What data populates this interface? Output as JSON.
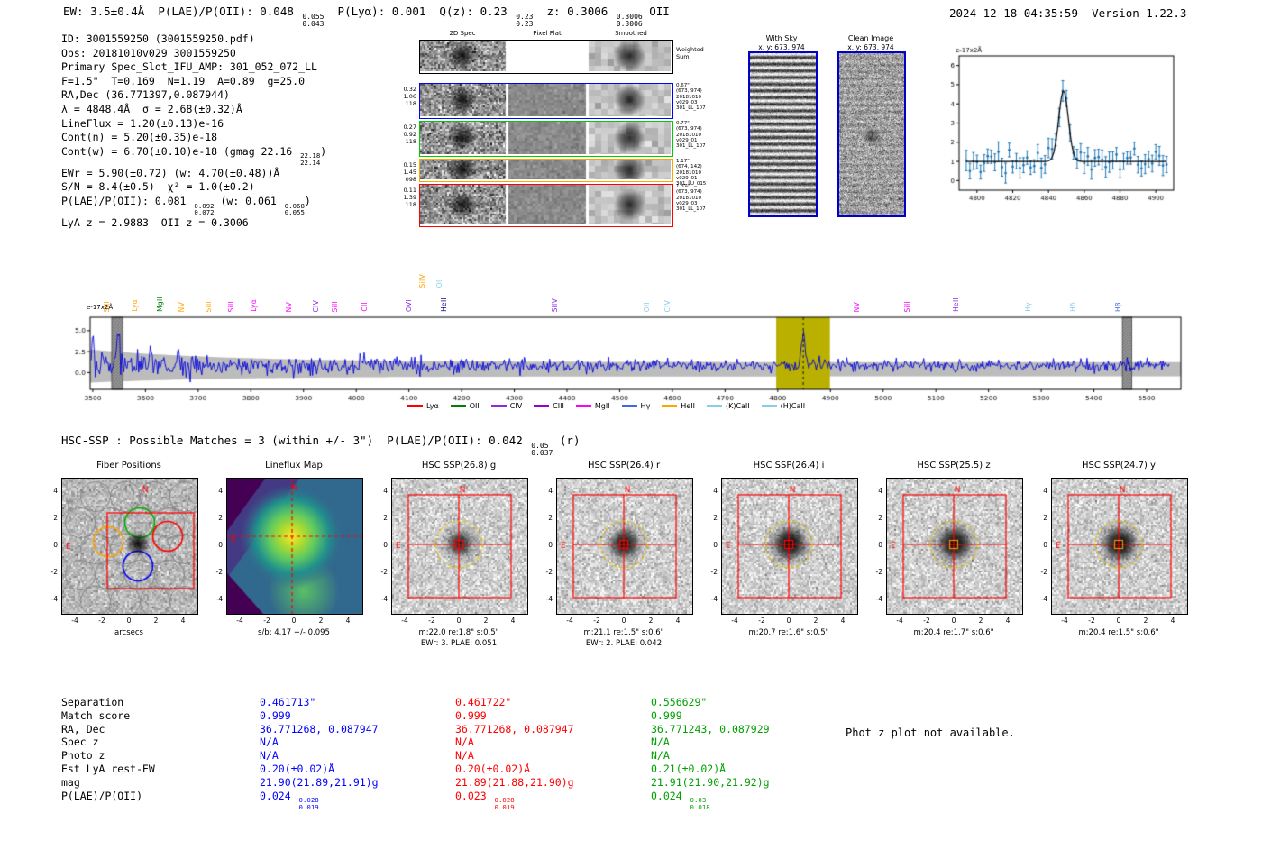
{
  "header": {
    "summary_segments": [
      {
        "t": "EW: 3.5±0.4Å  P(LAE)/P(OII): 0.048 "
      },
      {
        "frac": [
          "0.055",
          "0.043"
        ]
      },
      {
        "t": "  P(Lyα): 0.001  Q(z): 0.23 "
      },
      {
        "frac": [
          "0.23",
          "0.23"
        ]
      },
      {
        "t": "  z: 0.3006 "
      },
      {
        "frac": [
          "0.3006",
          "0.3006"
        ]
      },
      {
        "t": " OII"
      }
    ],
    "timestamp": "2024-12-18 04:35:59",
    "version": "Version 1.22.3"
  },
  "info": {
    "lines": [
      [
        {
          "t": "ID: 3001559250 (3001559250.pdf)"
        }
      ],
      [
        {
          "t": "Obs: 20181010v029_3001559250"
        }
      ],
      [
        {
          "t": "Primary Spec_Slot_IFU_AMP: 301_052_072_LL"
        }
      ],
      [
        {
          "t": "F=1.5\"  T=0.169  N=1.19  A=0.89  g=25.0"
        }
      ],
      [
        {
          "t": "RA,Dec (36.771397,0.087944)"
        }
      ],
      [
        {
          "t": "λ = 4848.4Å  σ = 2.68(±0.32)Å"
        }
      ],
      [
        {
          "t": "LineFlux = 1.20(±0.13)e-16"
        }
      ],
      [
        {
          "t": "Cont(n) = 5.20(±0.35)e-18"
        }
      ],
      [
        {
          "t": "Cont(w) = 6.70(±0.10)e-18 (gmag 22.16 "
        },
        {
          "frac": [
            "22.18",
            "22.14"
          ]
        },
        {
          "t": ")"
        }
      ],
      [
        {
          "t": "EWr = 5.90(±0.72) (w: 4.70(±0.48))Å"
        }
      ],
      [
        {
          "t": "S/N = 8.4(±0.5)  χ² = 1.0(±0.2)"
        }
      ],
      [
        {
          "t": "P(LAE)/P(OII): 0.081 "
        },
        {
          "frac": [
            "0.092",
            "0.072"
          ]
        },
        {
          "t": " (w: 0.061 "
        },
        {
          "frac": [
            "0.068",
            "0.055"
          ]
        },
        {
          "t": ")"
        }
      ],
      [
        {
          "t": "LyA z = 2.9883  OII z = 0.3006"
        }
      ]
    ]
  },
  "spec2d": {
    "col_headers": [
      "2D Spec",
      "Pixel Flat",
      "Smoothed"
    ],
    "weighted_label": [
      "Weighted",
      "Sum"
    ],
    "rows": [
      {
        "color": "#000000",
        "left": [],
        "right": []
      },
      {
        "color": "#0000ff",
        "left": [
          "0.32",
          "1.06",
          "118"
        ],
        "right": [
          "0.67\"",
          "(673, 974)",
          "20181010",
          "v029_03",
          "301_LL_107"
        ]
      },
      {
        "color": "#00cc00",
        "left": [
          "0.27",
          "0.92",
          "118"
        ],
        "right": [
          "0.77\"",
          "(673, 974)",
          "20181010",
          "v029_01",
          "301_LL_107"
        ]
      },
      {
        "color": "#ffa500",
        "left": [
          "0.15",
          "1.45",
          "098"
        ],
        "right": [
          "1.17\"",
          "(674, 142)",
          "20181010",
          "v029_01",
          "301_LU_015"
        ]
      },
      {
        "color": "#ff0000",
        "left": [
          "0.11",
          "1.39",
          "118"
        ],
        "right": [
          "1.37\"",
          "(673, 974)",
          "20181010",
          "v029_03",
          "301_LL_107"
        ]
      }
    ]
  },
  "sky_panels": {
    "with_sky": {
      "title": "With Sky",
      "coords": "x, y: 673, 974"
    },
    "clean": {
      "title": "Clean Image",
      "coords": "x, y: 673, 974"
    }
  },
  "chart_data": [
    {
      "id": "emission_line_fit",
      "type": "scatter",
      "title": "",
      "xlabel": "",
      "ylabel": "e-17x2Å",
      "xlim": [
        4790,
        4910
      ],
      "ylim": [
        -0.5,
        6.5
      ],
      "xticks": [
        4800,
        4820,
        4840,
        4860,
        4880,
        4900
      ],
      "yticks": [
        0,
        1,
        2,
        3,
        4,
        5,
        6
      ],
      "fit": {
        "center": 4848.4,
        "sigma": 2.68,
        "amplitude": 3.7,
        "continuum": 1.0
      },
      "noise_sigma": 0.33,
      "point_step": 2,
      "colors": {
        "points": "#1f77b4",
        "fit": "#000000"
      },
      "grid": false
    },
    {
      "id": "full_spectrum",
      "type": "line",
      "title": "",
      "xlabel": "",
      "ylabel": "e-17x2Å",
      "xlim": [
        3495,
        5565
      ],
      "ylim": [
        -2.0,
        6.6
      ],
      "xticks": [
        3500,
        3600,
        3700,
        3800,
        3900,
        4000,
        4100,
        4200,
        4300,
        4400,
        4500,
        4600,
        4700,
        4800,
        4900,
        5000,
        5100,
        5200,
        5300,
        5400,
        5500
      ],
      "yticks": [
        0,
        2.5,
        5
      ],
      "continuum": 0.85,
      "noise": {
        "base": 0.34,
        "blue_extra": 0.55,
        "decay": 420
      },
      "peaks": [
        {
          "x": 3500,
          "a": 4.5,
          "s": 2.2
        },
        {
          "x": 3548,
          "a": 4.3,
          "s": 2.6
        },
        {
          "x": 3610,
          "a": 1.7,
          "s": 2.2
        },
        {
          "x": 3662,
          "a": 1.5,
          "s": 2.0
        },
        {
          "x": 4848.4,
          "a": 4.15,
          "s": 3.2
        }
      ],
      "highlight_band": {
        "range": [
          4797,
          4899
        ],
        "color": "#b9b000"
      },
      "sky_bands": [
        [
          3536,
          3557
        ],
        [
          5454,
          5472
        ]
      ],
      "noise_band": {
        "color": "#bcbcbc"
      },
      "line_color": "#0000dd",
      "marker_line": {
        "x": 4848.4,
        "style": "dashed",
        "color": "#000000"
      },
      "legend_position": "bottom center",
      "grid": false
    }
  ],
  "spectrum_annotations": {
    "line_labels": [
      {
        "label": "SiII",
        "wave": 3528,
        "color": "#ffa500",
        "raise": false
      },
      {
        "label": "Lyα",
        "wave": 3581,
        "color": "#ffa500",
        "raise": false
      },
      {
        "label": "MgII",
        "wave": 3628,
        "color": "#008000",
        "raise": false
      },
      {
        "label": "NV",
        "wave": 3669,
        "color": "#ffa500",
        "raise": false
      },
      {
        "label": "SiII",
        "wave": 3721,
        "color": "#ffa500",
        "raise": false
      },
      {
        "label": "SiII",
        "wave": 3764,
        "color": "#ff00ff",
        "raise": false
      },
      {
        "label": "Lyα",
        "wave": 3807,
        "color": "#ff00ff",
        "raise": false
      },
      {
        "label": "NV",
        "wave": 3873,
        "color": "#ff00ff",
        "raise": false
      },
      {
        "label": "CIV",
        "wave": 3925,
        "color": "#8a2be2",
        "raise": false
      },
      {
        "label": "SiII",
        "wave": 3960,
        "color": "#ff00ff",
        "raise": false
      },
      {
        "label": "CII",
        "wave": 4017,
        "color": "#ff00ff",
        "raise": false
      },
      {
        "label": "OVI",
        "wave": 4100,
        "color": "#8a2be2",
        "raise": false
      },
      {
        "label": "SiIV",
        "wave": 4126,
        "color": "#ffa500",
        "raise": true
      },
      {
        "label": "OII",
        "wave": 4158,
        "color": "#87ceeb",
        "raise": true
      },
      {
        "label": "HeII",
        "wave": 4168,
        "color": "#00008b",
        "raise": false
      },
      {
        "label": "SiIV",
        "wave": 4378,
        "color": "#8a2be2",
        "raise": false
      },
      {
        "label": "OII",
        "wave": 4553,
        "color": "#87ceeb",
        "raise": false
      },
      {
        "label": "CIV",
        "wave": 4591,
        "color": "#87ceeb",
        "raise": false
      },
      {
        "label": "NV",
        "wave": 4951,
        "color": "#ff00ff",
        "raise": false
      },
      {
        "label": "SiII",
        "wave": 5046,
        "color": "#ff00ff",
        "raise": false
      },
      {
        "label": "HeII",
        "wave": 5139,
        "color": "#8a2be2",
        "raise": false
      },
      {
        "label": "Hγ",
        "wave": 5276,
        "color": "#87ceeb",
        "raise": false
      },
      {
        "label": "Hδ",
        "wave": 5362,
        "color": "#87ceeb",
        "raise": false
      },
      {
        "label": "Hβ",
        "wave": 5447,
        "color": "#4169e1",
        "raise": false
      }
    ],
    "legend": [
      {
        "label": "Lyα",
        "color": "#ff0000"
      },
      {
        "label": "OII",
        "color": "#008000"
      },
      {
        "label": "CIV",
        "color": "#8a2be2"
      },
      {
        "label": "CIII",
        "color": "#9400d3"
      },
      {
        "label": "MgII",
        "color": "#ff00ff"
      },
      {
        "label": "Hγ",
        "color": "#4169e1"
      },
      {
        "label": "HeII",
        "color": "#ffa500"
      },
      {
        "label": "(K)CaII",
        "color": "#87ceeb"
      },
      {
        "label": "(H)CaII",
        "color": "#87ceeb"
      }
    ]
  },
  "matches": {
    "heading_segments": [
      {
        "t": "HSC-SSP : Possible Matches = 3 (within +/- 3\")  P(LAE)/P(OII): 0.042 "
      },
      {
        "frac": [
          "0.05",
          "0.037"
        ]
      },
      {
        "t": " (r)"
      }
    ],
    "row_labels": [
      "Separation",
      "Match score",
      "RA, Dec",
      "Spec z",
      "Photo z",
      "Est LyA rest-EW",
      "mag",
      "P(LAE)/P(OII)"
    ],
    "columns": [
      {
        "color": "#0000ff",
        "values": [
          "0.461713\"",
          "0.999",
          "36.771268, 0.087947",
          "N/A",
          "N/A",
          "0.20(±0.02)Å",
          "21.90(21.89,21.91)g"
        ],
        "plae_segments": [
          {
            "t": "0.024 "
          },
          {
            "frac": [
              "0.028",
              "0.019"
            ]
          }
        ]
      },
      {
        "color": "#ff0000",
        "values": [
          "0.461722\"",
          "0.999",
          "36.771268, 0.087947",
          "N/A",
          "N/A",
          "0.20(±0.02)Å",
          "21.89(21.88,21.90)g"
        ],
        "plae_segments": [
          {
            "t": "0.023 "
          },
          {
            "frac": [
              "0.028",
              "0.019"
            ]
          }
        ]
      },
      {
        "color": "#00a000",
        "values": [
          "0.556629\"",
          "0.999",
          "36.771243, 0.087929",
          "N/A",
          "N/A",
          "0.21(±0.02)Å",
          "21.91(21.90,21.92)g"
        ],
        "plae_segments": [
          {
            "t": "0.024 "
          },
          {
            "frac": [
              "0.03",
              "0.018"
            ]
          }
        ]
      }
    ],
    "note": "Phot z plot not available."
  },
  "cutouts": {
    "ticks": [
      "-4",
      "-2",
      "0",
      "2",
      "4"
    ],
    "panels": [
      {
        "name": "fiber-positions",
        "title": "Fiber Positions",
        "xlabel": "arcsecs",
        "caption": ""
      },
      {
        "name": "lineflux-map",
        "title": "Lineflux Map",
        "xlabel": "s/b: 4.17 +/- 0.095",
        "caption": ""
      },
      {
        "name": "hsc-g",
        "title": "HSC SSP(26.8) g",
        "xlabel": "m:22.0 re:1.8\" s:0.5\"",
        "caption": "EWr: 3. PLAE: 0.051"
      },
      {
        "name": "hsc-r",
        "title": "HSC SSP(26.4) r",
        "xlabel": "m:21.1 re:1.5\" s:0.6\"",
        "caption": "EWr: 2. PLAE: 0.042"
      },
      {
        "name": "hsc-i",
        "title": "HSC SSP(26.4) i",
        "xlabel": "m:20.7 re:1.6\" s:0.5\"",
        "caption": ""
      },
      {
        "name": "hsc-z",
        "title": "HSC SSP(25.5) z",
        "xlabel": "m:20.4 re:1.7\" s:0.6\"",
        "caption": ""
      },
      {
        "name": "hsc-y",
        "title": "HSC SSP(24.7) y",
        "xlabel": "m:20.4 re:1.5\" s:0.6\"",
        "caption": ""
      }
    ]
  }
}
